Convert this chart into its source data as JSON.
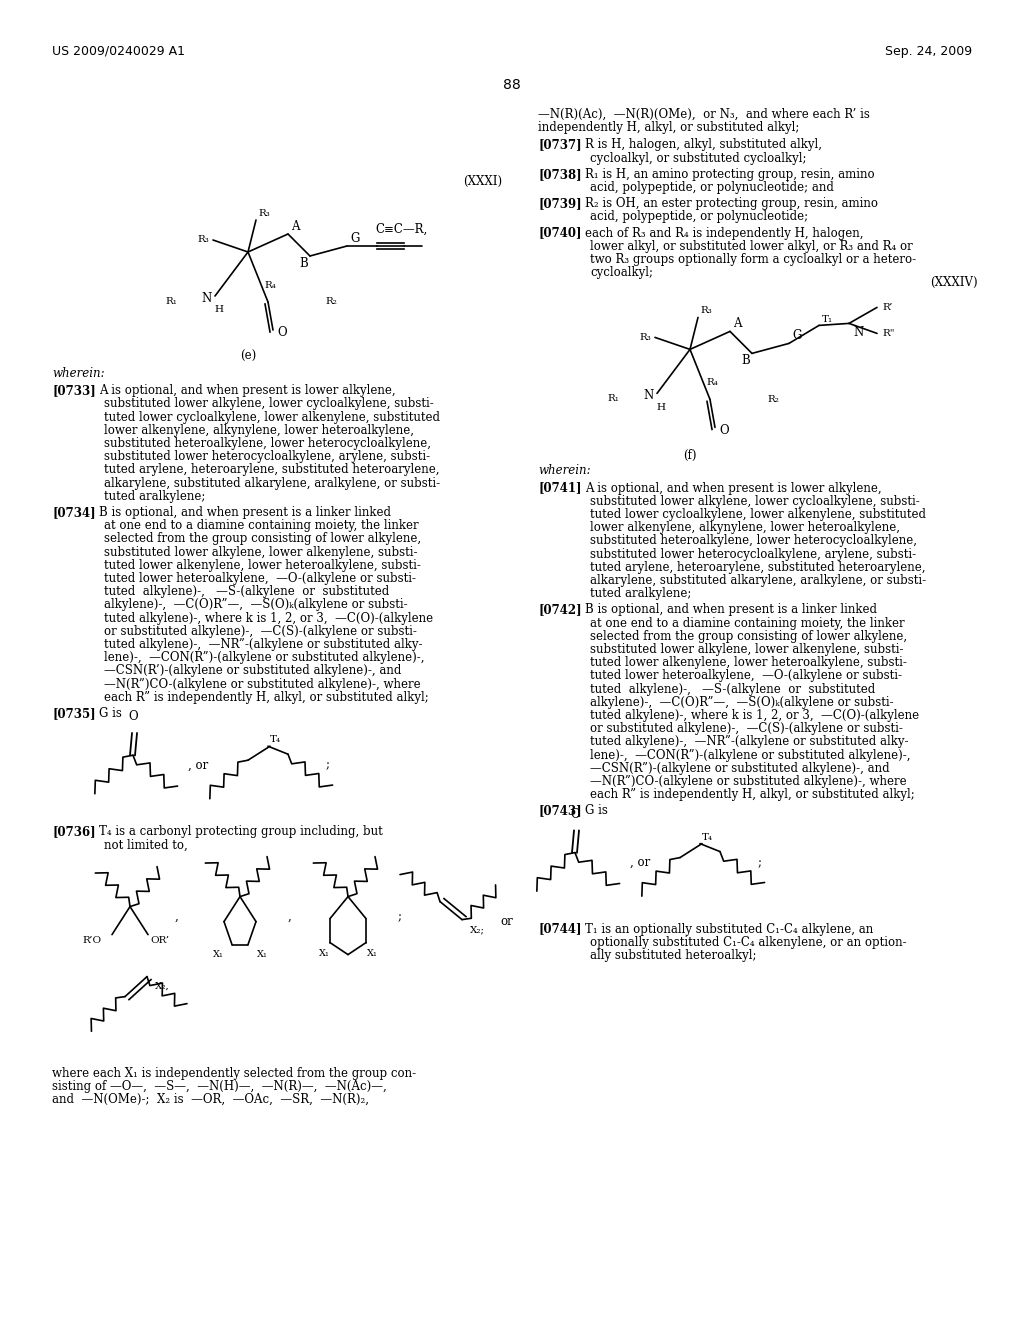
{
  "page_number": "88",
  "header_left": "US 2009/0240029 A1",
  "header_right": "Sep. 24, 2009",
  "bg": "#ffffff"
}
